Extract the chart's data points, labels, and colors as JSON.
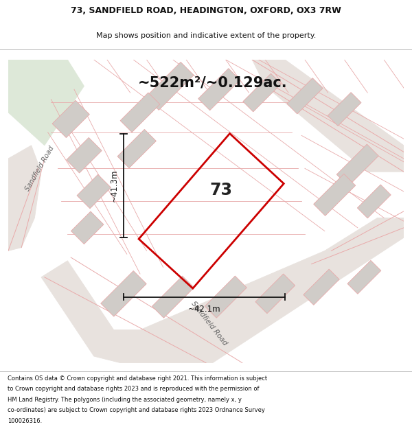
{
  "title_line1": "73, SANDFIELD ROAD, HEADINGTON, OXFORD, OX3 7RW",
  "title_line2": "Map shows position and indicative extent of the property.",
  "area_text": "~522m²/~0.129ac.",
  "number_label": "73",
  "dim_vertical": "~41.3m",
  "dim_horizontal": "~42.1m",
  "road_label_left": "Sandfield Road",
  "road_label_bottom": "Sandfield Road",
  "footer_lines": [
    "Contains OS data © Crown copyright and database right 2021. This information is subject",
    "to Crown copyright and database rights 2023 and is reproduced with the permission of",
    "HM Land Registry. The polygons (including the associated geometry, namely x, y",
    "co-ordinates) are subject to Crown copyright and database rights 2023 Ordnance Survey",
    "100026316."
  ],
  "white_bg": "#ffffff",
  "map_bg": "#ede8e4",
  "red_color": "#cc0000",
  "gray_block": "#d0ccc8",
  "pink_line": "#e8aaaa",
  "green_area": "#dde8d8",
  "road_color": "#e8e2de",
  "dark_road": "#ccc8c4"
}
